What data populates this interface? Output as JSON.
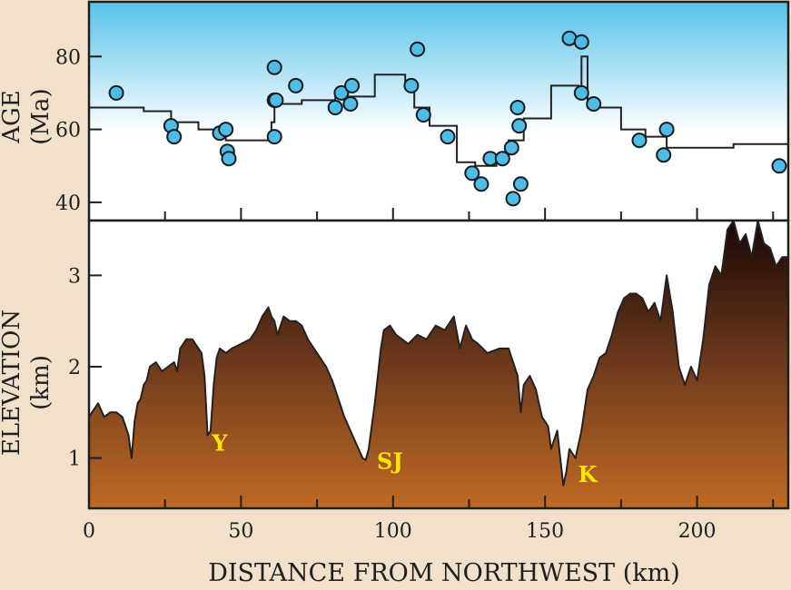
{
  "chart_data": [
    {
      "type": "scatter",
      "panel": "top",
      "ylabel": "AGE",
      "ylabel_unit": "(Ma)",
      "xlim": [
        0,
        230
      ],
      "ylim": [
        35,
        95
      ],
      "yticks": [
        40,
        60,
        80
      ],
      "grid": false,
      "legend": "none",
      "colors": {
        "background_top": "#56c2ea",
        "background_bottom": "#ffffff",
        "marker": "#4dbde8",
        "line": "#222222"
      },
      "series": [
        {
          "points": [
            [
              9,
              70
            ],
            [
              27,
              61
            ],
            [
              28,
              58
            ],
            [
              43,
              59
            ],
            [
              45,
              60
            ],
            [
              45.5,
              54
            ],
            [
              46,
              52
            ],
            [
              61,
              77
            ],
            [
              61,
              68
            ],
            [
              61.5,
              68
            ],
            [
              61,
              58
            ],
            [
              68,
              72
            ],
            [
              81,
              66
            ],
            [
              83,
              70
            ],
            [
              86,
              67
            ],
            [
              86.5,
              72
            ],
            [
              106,
              72
            ],
            [
              108,
              82
            ],
            [
              110,
              64
            ],
            [
              118,
              58
            ],
            [
              126,
              48
            ],
            [
              129,
              45
            ],
            [
              132,
              52
            ],
            [
              136,
              52
            ],
            [
              139,
              55
            ],
            [
              139.5,
              41
            ],
            [
              141,
              66
            ],
            [
              141.5,
              61
            ],
            [
              142,
              45
            ],
            [
              158,
              85
            ],
            [
              162,
              84
            ],
            [
              162,
              70
            ],
            [
              166,
              67
            ],
            [
              181,
              57
            ],
            [
              189,
              53
            ],
            [
              190,
              60
            ],
            [
              227,
              50
            ]
          ]
        },
        {
          "type": "line",
          "x": [
            0,
            18,
            18,
            27,
            27,
            36,
            36,
            45,
            45,
            60,
            60,
            61,
            61,
            70,
            70,
            81,
            81,
            94,
            94,
            104,
            104,
            107,
            107,
            112,
            112,
            121,
            121,
            127,
            127,
            134,
            134,
            138,
            138,
            143,
            143,
            152,
            152,
            161,
            161,
            162,
            162,
            164,
            164,
            175,
            175,
            183,
            183,
            190,
            190,
            212,
            212,
            230
          ],
          "y": [
            66,
            66,
            65,
            65,
            62,
            62,
            60,
            60,
            57,
            57,
            62,
            62,
            67,
            67,
            68,
            68,
            69,
            69,
            75,
            75,
            73,
            73,
            66,
            66,
            61,
            61,
            51,
            51,
            50,
            50,
            53,
            53,
            57,
            57,
            63,
            63,
            72,
            72,
            71,
            71,
            80,
            80,
            66,
            66,
            60,
            60,
            58,
            58,
            55,
            55,
            56,
            56
          ]
        }
      ]
    },
    {
      "type": "area",
      "panel": "bottom",
      "ylabel": "ELEVATION",
      "ylabel_unit": "(km)",
      "xlabel": "DISTANCE FROM NORTHWEST (km)",
      "xlim": [
        0,
        230
      ],
      "ylim": [
        0.45,
        3.6
      ],
      "xticks": [
        0,
        50,
        100,
        150,
        200
      ],
      "yticks": [
        1,
        2,
        3
      ],
      "grid": false,
      "legend": "none",
      "colors": {
        "fill_top": "#1a0606",
        "fill_mid": "#6e3a1c",
        "fill_bottom": "#c06a24",
        "line": "#222222",
        "annotation": "#ffe600"
      },
      "series": [
        {
          "x": [
            0,
            1,
            3,
            5,
            7,
            9,
            11,
            13,
            14,
            15,
            16,
            17,
            18,
            19,
            20,
            22,
            24,
            26,
            28,
            29,
            30,
            32,
            34,
            36,
            37,
            38,
            39,
            40,
            41,
            42,
            43,
            45,
            47,
            50,
            53,
            55,
            57,
            58,
            59,
            60,
            61,
            62,
            64,
            66,
            68,
            70,
            72,
            74,
            75,
            76,
            78,
            80,
            82,
            84,
            86,
            88,
            90,
            91,
            92,
            94,
            96,
            97,
            99,
            101,
            103,
            105,
            108,
            111,
            114,
            117,
            120,
            122,
            124,
            126,
            128,
            131,
            135,
            138,
            141,
            142,
            143,
            145,
            147,
            149,
            151,
            152,
            154,
            156,
            157,
            158,
            160,
            162,
            164,
            166,
            168,
            170,
            172,
            174,
            176,
            178,
            180,
            182,
            184,
            186,
            188,
            190,
            192,
            194,
            196,
            198,
            200,
            202,
            204,
            206,
            208,
            210,
            212,
            214,
            216,
            218,
            220,
            222,
            224,
            226,
            228,
            230
          ],
          "y": [
            1.45,
            1.5,
            1.6,
            1.45,
            1.5,
            1.5,
            1.45,
            1.25,
            1.0,
            1.4,
            1.6,
            1.65,
            1.8,
            1.85,
            2.0,
            2.05,
            1.95,
            2.0,
            2.05,
            1.95,
            2.2,
            2.3,
            2.3,
            2.2,
            2.15,
            1.9,
            1.25,
            1.3,
            1.8,
            2.1,
            2.2,
            2.15,
            2.2,
            2.25,
            2.3,
            2.4,
            2.55,
            2.6,
            2.65,
            2.55,
            2.5,
            2.35,
            2.55,
            2.5,
            2.5,
            2.45,
            2.3,
            2.2,
            2.15,
            2.1,
            2.0,
            1.85,
            1.65,
            1.45,
            1.3,
            1.15,
            1.0,
            0.98,
            1.1,
            1.6,
            2.2,
            2.4,
            2.45,
            2.35,
            2.3,
            2.25,
            2.35,
            2.3,
            2.45,
            2.4,
            2.55,
            2.2,
            2.45,
            2.3,
            2.25,
            2.15,
            2.2,
            2.2,
            1.9,
            1.5,
            1.8,
            1.9,
            1.75,
            1.45,
            1.35,
            1.1,
            1.3,
            0.7,
            0.85,
            1.1,
            1.0,
            1.3,
            1.75,
            1.9,
            2.1,
            2.15,
            2.35,
            2.6,
            2.75,
            2.8,
            2.8,
            2.75,
            2.6,
            2.7,
            2.5,
            3.0,
            2.6,
            2.0,
            1.8,
            2.0,
            1.85,
            2.3,
            2.9,
            3.1,
            3.0,
            3.5,
            3.6,
            3.35,
            3.45,
            3.2,
            3.6,
            3.35,
            3.3,
            3.1,
            3.2,
            3.2
          ]
        }
      ],
      "annotations": [
        {
          "text": "Y",
          "x": 43,
          "y": 1.08
        },
        {
          "text": "SJ",
          "x": 99,
          "y": 0.88
        },
        {
          "text": "K",
          "x": 164,
          "y": 0.74
        }
      ]
    }
  ]
}
